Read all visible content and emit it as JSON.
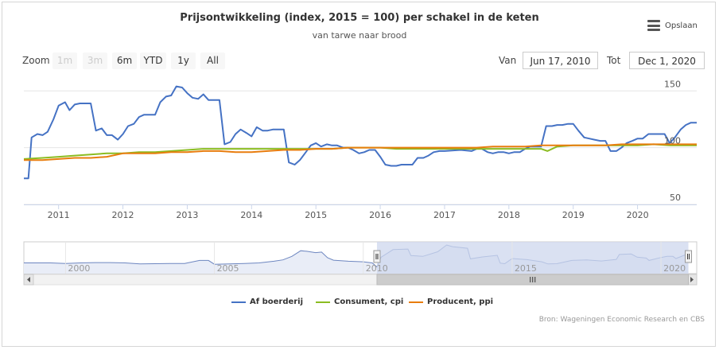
{
  "header": {
    "title": "Prijsontwikkeling (index, 2015 = 100) per schakel in de keten",
    "subtitle": "van tarwe naar brood"
  },
  "export": {
    "label": "Opslaan",
    "icon": "menu-icon"
  },
  "range_selector": {
    "zoom_label": "Zoom",
    "buttons": [
      {
        "label": "1m",
        "enabled": false
      },
      {
        "label": "3m",
        "enabled": false
      },
      {
        "label": "6m",
        "enabled": true
      },
      {
        "label": "YTD",
        "enabled": true
      },
      {
        "label": "1y",
        "enabled": true
      },
      {
        "label": "All",
        "enabled": true
      }
    ],
    "from_label": "Van",
    "from_value": "Jun 17, 2010",
    "to_label": "Tot",
    "to_value": "Dec 1, 2020"
  },
  "credits": "Bron: Wageningen Economic Research en CBS",
  "colors": {
    "farm": "#4572c4",
    "consumer": "#8bbc21",
    "producer": "#e87d0e",
    "grid": "#e6e6e6",
    "navigator_fill": "#cdd7ee",
    "navigator_line": "#6d86c0"
  },
  "chart_data": {
    "type": "line",
    "title": "Prijsontwikkeling (index, 2015 = 100) per schakel in de keten",
    "subtitle": "van tarwe naar brood",
    "x_range": [
      2010.46,
      2020.92
    ],
    "ylim": [
      50,
      160
    ],
    "y_ticks": [
      50,
      100,
      150
    ],
    "x_tick_labels": [
      "2011",
      "2012",
      "2013",
      "2014",
      "2015",
      "2016",
      "2017",
      "2018",
      "2019",
      "2020"
    ],
    "grid": true,
    "legend_position": "bottom-center",
    "series": [
      {
        "name": "Af boerderij",
        "key": "farm",
        "points": [
          [
            2010.46,
            73
          ],
          [
            2010.53,
            73
          ],
          [
            2010.58,
            109
          ],
          [
            2010.67,
            112
          ],
          [
            2010.75,
            111
          ],
          [
            2010.83,
            114
          ],
          [
            2010.92,
            125
          ],
          [
            2011.0,
            137
          ],
          [
            2011.1,
            140
          ],
          [
            2011.17,
            133
          ],
          [
            2011.25,
            138
          ],
          [
            2011.33,
            139
          ],
          [
            2011.5,
            139
          ],
          [
            2011.58,
            115
          ],
          [
            2011.67,
            117
          ],
          [
            2011.75,
            111
          ],
          [
            2011.83,
            111
          ],
          [
            2011.92,
            107
          ],
          [
            2012.0,
            112
          ],
          [
            2012.08,
            119
          ],
          [
            2012.17,
            121
          ],
          [
            2012.25,
            127
          ],
          [
            2012.33,
            129
          ],
          [
            2012.5,
            129
          ],
          [
            2012.58,
            140
          ],
          [
            2012.67,
            145
          ],
          [
            2012.75,
            146
          ],
          [
            2012.83,
            154
          ],
          [
            2012.92,
            153
          ],
          [
            2013.0,
            148
          ],
          [
            2013.08,
            144
          ],
          [
            2013.17,
            143
          ],
          [
            2013.25,
            147
          ],
          [
            2013.33,
            142
          ],
          [
            2013.5,
            142
          ],
          [
            2013.58,
            103
          ],
          [
            2013.67,
            105
          ],
          [
            2013.75,
            112
          ],
          [
            2013.83,
            116
          ],
          [
            2013.92,
            113
          ],
          [
            2014.0,
            110
          ],
          [
            2014.08,
            118
          ],
          [
            2014.17,
            115
          ],
          [
            2014.25,
            115
          ],
          [
            2014.33,
            116
          ],
          [
            2014.5,
            116
          ],
          [
            2014.58,
            87
          ],
          [
            2014.67,
            85
          ],
          [
            2014.75,
            89
          ],
          [
            2014.83,
            95
          ],
          [
            2014.92,
            102
          ],
          [
            2015.0,
            104
          ],
          [
            2015.08,
            101
          ],
          [
            2015.17,
            103
          ],
          [
            2015.25,
            102
          ],
          [
            2015.33,
            102
          ],
          [
            2015.42,
            100
          ],
          [
            2015.5,
            100
          ],
          [
            2015.58,
            98
          ],
          [
            2015.67,
            95
          ],
          [
            2015.75,
            96
          ],
          [
            2015.83,
            98
          ],
          [
            2015.92,
            98
          ],
          [
            2016.0,
            92
          ],
          [
            2016.08,
            85
          ],
          [
            2016.17,
            84
          ],
          [
            2016.25,
            84
          ],
          [
            2016.33,
            85
          ],
          [
            2016.5,
            85
          ],
          [
            2016.58,
            91
          ],
          [
            2016.67,
            91
          ],
          [
            2016.75,
            93
          ],
          [
            2016.83,
            96
          ],
          [
            2016.92,
            97
          ],
          [
            2017.0,
            97
          ],
          [
            2017.25,
            98
          ],
          [
            2017.42,
            97
          ],
          [
            2017.5,
            99
          ],
          [
            2017.58,
            99
          ],
          [
            2017.67,
            96
          ],
          [
            2017.75,
            95
          ],
          [
            2017.83,
            96
          ],
          [
            2017.92,
            96
          ],
          [
            2018.0,
            95
          ],
          [
            2018.08,
            96
          ],
          [
            2018.17,
            96
          ],
          [
            2018.25,
            99
          ],
          [
            2018.33,
            101
          ],
          [
            2018.42,
            101
          ],
          [
            2018.5,
            101
          ],
          [
            2018.58,
            119
          ],
          [
            2018.67,
            119
          ],
          [
            2018.75,
            120
          ],
          [
            2018.83,
            120
          ],
          [
            2018.92,
            121
          ],
          [
            2019.0,
            121
          ],
          [
            2019.08,
            115
          ],
          [
            2019.17,
            109
          ],
          [
            2019.25,
            108
          ],
          [
            2019.33,
            107
          ],
          [
            2019.42,
            106
          ],
          [
            2019.5,
            106
          ],
          [
            2019.58,
            97
          ],
          [
            2019.67,
            97
          ],
          [
            2019.75,
            100
          ],
          [
            2019.83,
            104
          ],
          [
            2019.92,
            106
          ],
          [
            2020.0,
            108
          ],
          [
            2020.08,
            108
          ],
          [
            2020.17,
            112
          ],
          [
            2020.25,
            112
          ],
          [
            2020.33,
            112
          ],
          [
            2020.42,
            112
          ],
          [
            2020.5,
            104
          ],
          [
            2020.58,
            109
          ],
          [
            2020.67,
            116
          ],
          [
            2020.75,
            120
          ],
          [
            2020.83,
            122
          ],
          [
            2020.92,
            122
          ]
        ]
      },
      {
        "name": "Consument, cpi",
        "key": "consumer",
        "points": [
          [
            2010.46,
            90
          ],
          [
            2010.75,
            91
          ],
          [
            2011.0,
            92
          ],
          [
            2011.25,
            93
          ],
          [
            2011.5,
            94
          ],
          [
            2011.75,
            95
          ],
          [
            2012.0,
            95
          ],
          [
            2012.25,
            96
          ],
          [
            2012.5,
            96
          ],
          [
            2012.75,
            97
          ],
          [
            2013.0,
            98
          ],
          [
            2013.25,
            99
          ],
          [
            2013.5,
            99
          ],
          [
            2013.75,
            99
          ],
          [
            2014.0,
            99
          ],
          [
            2014.25,
            99
          ],
          [
            2014.5,
            99
          ],
          [
            2014.75,
            99
          ],
          [
            2015.0,
            99
          ],
          [
            2015.25,
            99
          ],
          [
            2015.5,
            100
          ],
          [
            2015.75,
            100
          ],
          [
            2016.0,
            100
          ],
          [
            2016.25,
            99
          ],
          [
            2016.5,
            99
          ],
          [
            2016.75,
            99
          ],
          [
            2017.0,
            99
          ],
          [
            2017.25,
            99
          ],
          [
            2017.5,
            99
          ],
          [
            2017.75,
            99
          ],
          [
            2018.0,
            99
          ],
          [
            2018.25,
            99
          ],
          [
            2018.5,
            99
          ],
          [
            2018.6,
            97
          ],
          [
            2018.75,
            101
          ],
          [
            2019.0,
            102
          ],
          [
            2019.25,
            102
          ],
          [
            2019.5,
            102
          ],
          [
            2019.75,
            102
          ],
          [
            2020.0,
            102
          ],
          [
            2020.25,
            103
          ],
          [
            2020.5,
            102
          ],
          [
            2020.75,
            102
          ],
          [
            2020.92,
            102
          ]
        ]
      },
      {
        "name": "Producent, ppi",
        "key": "producer",
        "points": [
          [
            2010.46,
            89
          ],
          [
            2010.75,
            89
          ],
          [
            2011.0,
            90
          ],
          [
            2011.25,
            91
          ],
          [
            2011.5,
            91
          ],
          [
            2011.75,
            92
          ],
          [
            2012.0,
            95
          ],
          [
            2012.25,
            95
          ],
          [
            2012.5,
            95
          ],
          [
            2012.75,
            96
          ],
          [
            2013.0,
            96
          ],
          [
            2013.25,
            97
          ],
          [
            2013.5,
            97
          ],
          [
            2013.75,
            96
          ],
          [
            2014.0,
            96
          ],
          [
            2014.25,
            97
          ],
          [
            2014.5,
            98
          ],
          [
            2014.75,
            98
          ],
          [
            2015.0,
            99
          ],
          [
            2015.25,
            99
          ],
          [
            2015.5,
            100
          ],
          [
            2015.75,
            100
          ],
          [
            2016.0,
            100
          ],
          [
            2016.25,
            100
          ],
          [
            2016.5,
            100
          ],
          [
            2016.75,
            100
          ],
          [
            2017.0,
            100
          ],
          [
            2017.25,
            100
          ],
          [
            2017.5,
            100
          ],
          [
            2017.75,
            101
          ],
          [
            2018.0,
            101
          ],
          [
            2018.25,
            101
          ],
          [
            2018.5,
            102
          ],
          [
            2018.75,
            102
          ],
          [
            2019.0,
            102
          ],
          [
            2019.25,
            102
          ],
          [
            2019.5,
            102
          ],
          [
            2019.75,
            103
          ],
          [
            2020.0,
            103
          ],
          [
            2020.25,
            103
          ],
          [
            2020.5,
            103
          ],
          [
            2020.75,
            103
          ],
          [
            2020.92,
            103
          ]
        ]
      }
    ],
    "navigator": {
      "x_range": [
        1998.6,
        2021.2
      ],
      "x_tick_labels": [
        "2000",
        "2005",
        "2010",
        "2015",
        "2020"
      ],
      "selected_range": [
        2010.46,
        2020.92
      ],
      "series": [
        [
          1998.6,
          88
        ],
        [
          1999.5,
          88
        ],
        [
          2000.0,
          86
        ],
        [
          2000.5,
          88
        ],
        [
          2001.0,
          89
        ],
        [
          2001.5,
          89
        ],
        [
          2002.0,
          88
        ],
        [
          2002.5,
          84
        ],
        [
          2003.0,
          85
        ],
        [
          2003.5,
          86
        ],
        [
          2004.0,
          86
        ],
        [
          2004.5,
          97
        ],
        [
          2004.8,
          97
        ],
        [
          2005.0,
          83
        ],
        [
          2005.5,
          84
        ],
        [
          2006.0,
          86
        ],
        [
          2006.5,
          88
        ],
        [
          2007.0,
          94
        ],
        [
          2007.3,
          99
        ],
        [
          2007.6,
          112
        ],
        [
          2007.9,
          133
        ],
        [
          2008.1,
          131
        ],
        [
          2008.4,
          126
        ],
        [
          2008.6,
          128
        ],
        [
          2008.8,
          107
        ],
        [
          2009.0,
          98
        ],
        [
          2009.5,
          94
        ],
        [
          2010.0,
          92
        ],
        [
          2010.3,
          88
        ],
        [
          2010.46,
          73
        ],
        [
          2010.6,
          109
        ],
        [
          2011.0,
          137
        ],
        [
          2011.5,
          139
        ],
        [
          2011.6,
          115
        ],
        [
          2012.0,
          112
        ],
        [
          2012.5,
          129
        ],
        [
          2012.8,
          154
        ],
        [
          2013.0,
          148
        ],
        [
          2013.5,
          142
        ],
        [
          2013.6,
          103
        ],
        [
          2014.0,
          110
        ],
        [
          2014.5,
          116
        ],
        [
          2014.6,
          87
        ],
        [
          2014.75,
          85
        ],
        [
          2015.0,
          104
        ],
        [
          2015.5,
          100
        ],
        [
          2016.0,
          92
        ],
        [
          2016.2,
          84
        ],
        [
          2016.5,
          85
        ],
        [
          2017.0,
          97
        ],
        [
          2017.5,
          99
        ],
        [
          2018.0,
          95
        ],
        [
          2018.5,
          101
        ],
        [
          2018.6,
          119
        ],
        [
          2019.0,
          121
        ],
        [
          2019.2,
          109
        ],
        [
          2019.5,
          106
        ],
        [
          2019.6,
          97
        ],
        [
          2020.0,
          108
        ],
        [
          2020.2,
          112
        ],
        [
          2020.4,
          112
        ],
        [
          2020.5,
          104
        ],
        [
          2020.92,
          122
        ]
      ]
    }
  }
}
